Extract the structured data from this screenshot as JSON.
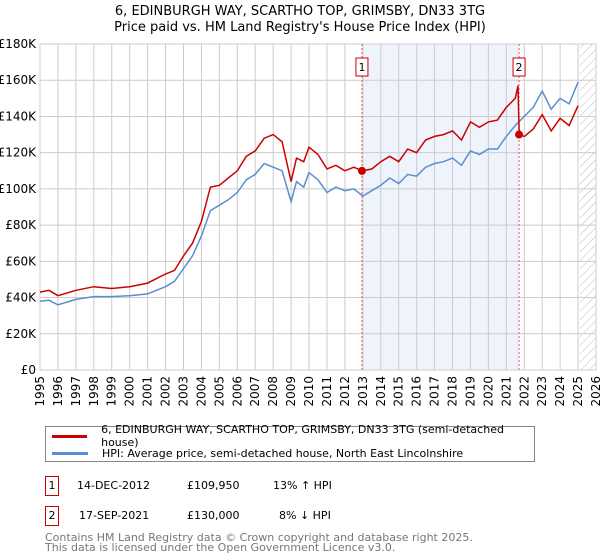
{
  "chart_data": {
    "type": "line",
    "title": "6, EDINBURGH WAY, SCARTHO TOP, GRIMSBY, DN33 3TG",
    "subtitle": "Price paid vs. HM Land Registry's House Price Index (HPI)",
    "xlim": [
      1995,
      2026
    ],
    "ylim": [
      0,
      180000
    ],
    "x_ticks": [
      "1995",
      "1996",
      "1997",
      "1998",
      "1999",
      "2000",
      "2001",
      "2002",
      "2003",
      "2004",
      "2005",
      "2006",
      "2007",
      "2008",
      "2009",
      "2010",
      "2011",
      "2012",
      "2013",
      "2014",
      "2015",
      "2016",
      "2017",
      "2018",
      "2019",
      "2020",
      "2021",
      "2022",
      "2023",
      "2024",
      "2025",
      "2026"
    ],
    "y_ticks": [
      "£0",
      "£20K",
      "£40K",
      "£60K",
      "£80K",
      "£100K",
      "£120K",
      "£140K",
      "£160K",
      "£180K"
    ],
    "grid": true,
    "colors": {
      "property": "#cc0000",
      "hpi": "#5b8dd0",
      "shade": "#eef3fc",
      "vline": "#ee5555"
    },
    "series": [
      {
        "name": "6, EDINBURGH WAY, SCARTHO TOP, GRIMSBY, DN33 3TG (semi-detached house)",
        "x": [
          1995,
          1995.5,
          1996,
          1997,
          1998,
          1999,
          2000,
          2001,
          2002,
          2002.5,
          2003,
          2003.5,
          2004,
          2004.5,
          2005,
          2005.5,
          2006,
          2006.5,
          2007,
          2007.5,
          2008,
          2008.5,
          2009,
          2009.3,
          2009.7,
          2010,
          2010.5,
          2011,
          2011.5,
          2012,
          2012.5,
          2012.95,
          2013.5,
          2014,
          2014.5,
          2015,
          2015.5,
          2016,
          2016.5,
          2017,
          2017.5,
          2018,
          2018.5,
          2019,
          2019.5,
          2020,
          2020.5,
          2021,
          2021.5,
          2021.65,
          2021.72,
          2022,
          2022.5,
          2023,
          2023.5,
          2024,
          2024.5,
          2025
        ],
        "y": [
          43,
          44,
          41,
          44,
          46,
          45,
          46,
          48,
          53,
          55,
          63,
          70,
          82,
          101,
          102,
          106,
          110,
          118,
          121,
          128,
          130,
          126,
          104,
          117,
          115,
          123,
          119,
          111,
          113,
          110,
          112,
          110,
          111,
          115,
          118,
          115,
          122,
          120,
          127,
          129,
          130,
          132,
          127,
          137,
          134,
          137,
          138,
          145,
          150,
          157,
          130,
          129,
          133,
          141,
          132,
          139,
          135,
          146
        ]
      },
      {
        "name": "HPI: Average price, semi-detached house, North East Lincolnshire",
        "x": [
          1995,
          1995.5,
          1996,
          1997,
          1998,
          1999,
          2000,
          2001,
          2002,
          2002.5,
          2003,
          2003.5,
          2004,
          2004.5,
          2005,
          2005.5,
          2006,
          2006.5,
          2007,
          2007.5,
          2008,
          2008.5,
          2009,
          2009.3,
          2009.7,
          2010,
          2010.5,
          2011,
          2011.5,
          2012,
          2012.5,
          2013,
          2013.5,
          2014,
          2014.5,
          2015,
          2015.5,
          2016,
          2016.5,
          2017,
          2017.5,
          2018,
          2018.5,
          2019,
          2019.5,
          2020,
          2020.5,
          2021,
          2021.5,
          2022,
          2022.5,
          2023,
          2023.5,
          2024,
          2024.5,
          2025
        ],
        "y": [
          38,
          38.5,
          36,
          39,
          40.5,
          40.5,
          41,
          42,
          46,
          49,
          56,
          63,
          74,
          88,
          91,
          94,
          98,
          105,
          108,
          114,
          112,
          110,
          93,
          104,
          101,
          109,
          105,
          98,
          101,
          99,
          100,
          96,
          99,
          102,
          106,
          103,
          108,
          107,
          112,
          114,
          115,
          117,
          113,
          121,
          119,
          122,
          122,
          129,
          135,
          140,
          145,
          154,
          144,
          150,
          147,
          159
        ]
      }
    ],
    "sales": [
      {
        "label": "1",
        "x": 2012.95,
        "y": 109950
      },
      {
        "label": "2",
        "x": 2021.71,
        "y": 130000
      }
    ],
    "hatched_from": 2025.1
  },
  "legend": {
    "property": "6, EDINBURGH WAY, SCARTHO TOP, GRIMSBY, DN33 3TG (semi-detached house)",
    "hpi": "HPI: Average price, semi-detached house, North East Lincolnshire"
  },
  "transactions": [
    {
      "num": "1",
      "date": "14-DEC-2012",
      "price": "£109,950",
      "delta": "13% ↑ HPI"
    },
    {
      "num": "2",
      "date": "17-SEP-2021",
      "price": "£130,000",
      "delta": "8% ↓ HPI"
    }
  ],
  "footer": {
    "line1": "Contains HM Land Registry data © Crown copyright and database right 2025.",
    "line2": "This data is licensed under the Open Government Licence v3.0."
  }
}
